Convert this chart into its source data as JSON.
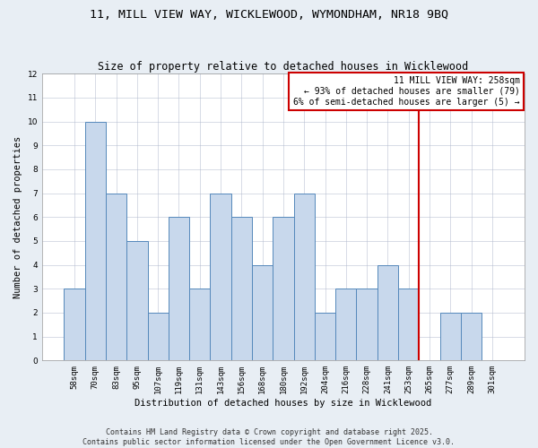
{
  "title": "11, MILL VIEW WAY, WICKLEWOOD, WYMONDHAM, NR18 9BQ",
  "subtitle": "Size of property relative to detached houses in Wicklewood",
  "xlabel": "Distribution of detached houses by size in Wicklewood",
  "ylabel": "Number of detached properties",
  "categories": [
    "58sqm",
    "70sqm",
    "83sqm",
    "95sqm",
    "107sqm",
    "119sqm",
    "131sqm",
    "143sqm",
    "156sqm",
    "168sqm",
    "180sqm",
    "192sqm",
    "204sqm",
    "216sqm",
    "228sqm",
    "241sqm",
    "253sqm",
    "265sqm",
    "277sqm",
    "289sqm",
    "301sqm"
  ],
  "values": [
    3,
    10,
    7,
    5,
    2,
    6,
    3,
    7,
    6,
    4,
    6,
    7,
    2,
    3,
    3,
    4,
    3,
    0,
    2,
    2,
    0
  ],
  "bar_color": "#c8d8ec",
  "bar_edge_color": "#5588bb",
  "ylim": [
    0,
    12
  ],
  "yticks": [
    0,
    1,
    2,
    3,
    4,
    5,
    6,
    7,
    8,
    9,
    10,
    11,
    12
  ],
  "vline_index": 16,
  "vline_color": "#cc0000",
  "legend_text_line1": "11 MILL VIEW WAY: 258sqm",
  "legend_text_line2": "← 93% of detached houses are smaller (79)",
  "legend_text_line3": "6% of semi-detached houses are larger (5) →",
  "footer_line1": "Contains HM Land Registry data © Crown copyright and database right 2025.",
  "footer_line2": "Contains public sector information licensed under the Open Government Licence v3.0.",
  "title_fontsize": 9.5,
  "subtitle_fontsize": 8.5,
  "axis_label_fontsize": 7.5,
  "tick_fontsize": 6.5,
  "footer_fontsize": 6,
  "legend_fontsize": 7,
  "background_color": "#e8eef4",
  "plot_background_color": "#ffffff"
}
